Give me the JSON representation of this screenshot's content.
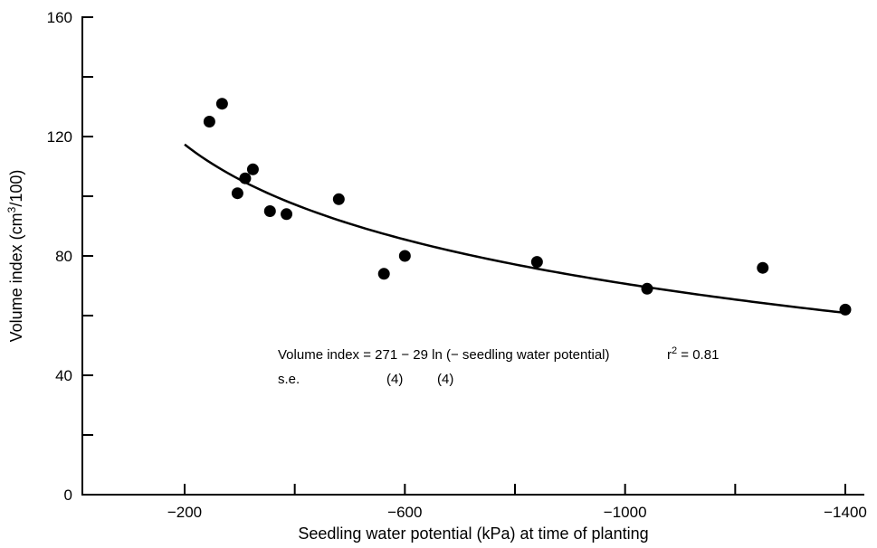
{
  "chart_data": {
    "type": "scatter",
    "title": "",
    "xlabel": "Seedling water potential (kPa) at time of planting",
    "ylabel_main": "Volume index (cm",
    "ylabel_sup": "3",
    "ylabel_tail": "/100)",
    "xlim": [
      -100,
      -1405
    ],
    "ylim": [
      0,
      160
    ],
    "x_direction": "reversed",
    "x_ticks_major": [
      -200,
      -600,
      -1000,
      -1400
    ],
    "x_ticks_minor": [
      -400,
      -800,
      -1200
    ],
    "y_ticks_major": [
      0,
      40,
      80,
      120,
      160
    ],
    "y_ticks_minor": [
      20,
      60,
      100,
      140
    ],
    "grid": false,
    "series": [
      {
        "kind": "points",
        "x": [
          -245,
          -268,
          -296,
          -310,
          -324,
          -355,
          -385,
          -480,
          -562,
          -600,
          -840,
          -1040,
          -1250,
          -1400
        ],
        "y": [
          125,
          131,
          101,
          106,
          109,
          95,
          94,
          99,
          74,
          80,
          78,
          69,
          76,
          62
        ]
      },
      {
        "kind": "fit",
        "equation": {
          "a": 271,
          "b": 29
        },
        "x_range": [
          -200,
          -1400
        ]
      }
    ],
    "annotations": {
      "equation": "Volume index = 271 − 29 ln (− seedling water potential)",
      "r2_main": "r",
      "r2_sup": "2",
      "r2_tail": " = 0.81",
      "se_label": "s.e.",
      "se_a": "(4)",
      "se_b": "(4)"
    }
  }
}
